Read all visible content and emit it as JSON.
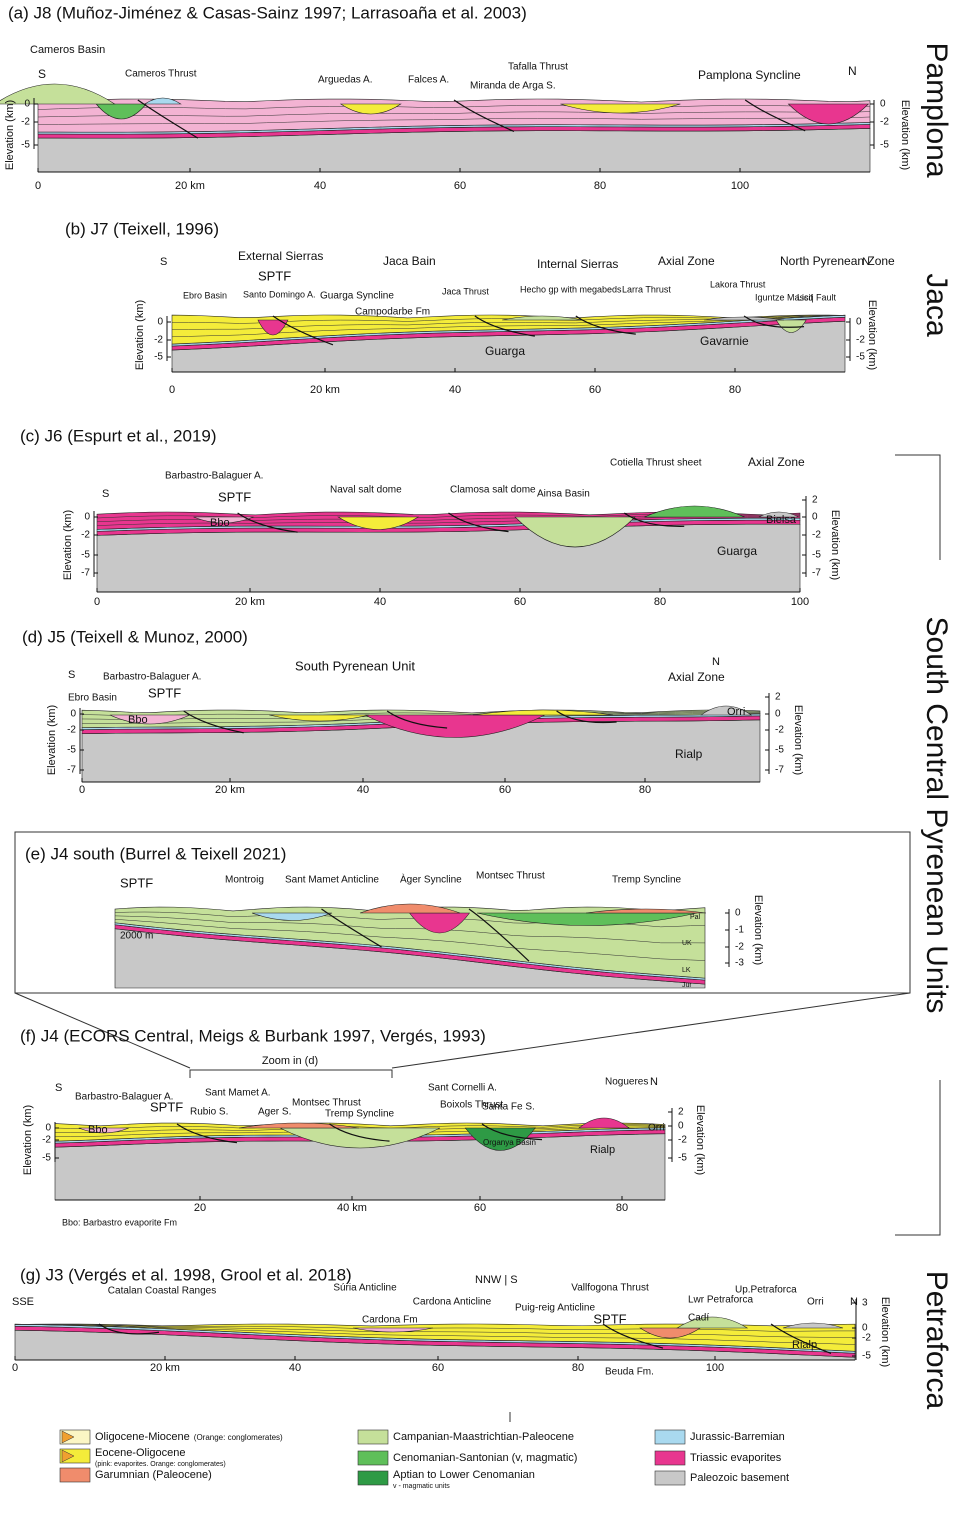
{
  "panels": [
    {
      "title": "(a) J8 (Muñoz-Jiménez & Casas-Sainz 1997; Larrasoaña et al. 2003)",
      "labels": [
        "Cameros Basin",
        "S",
        "Cameros Thrust",
        "Arguedas A.",
        "Falces A.",
        "Miranda de Arga S.",
        "Tafalla Thrust",
        "Pamplona Syncline",
        "N"
      ],
      "x_ticks": [
        "0",
        "20 km",
        "40",
        "60",
        "80",
        "100"
      ],
      "y_ticks_left": [
        "0",
        "-2",
        "-5"
      ],
      "y_ticks_right": [
        "0",
        "-2",
        "-5"
      ],
      "y_axis_label": "Elevation (km)"
    },
    {
      "title": "(b) J7 (Teixell, 1996)",
      "labels": [
        "S",
        "External Sierras",
        "SPTF",
        "Jaca Bain",
        "Internal Sierras",
        "Axial Zone",
        "North Pyrenean Zone",
        "N",
        "Ebro Basin",
        "Santo Domingo A.",
        "Guarga Syncline",
        "Campodarbe Fm",
        "Jaca Thrust",
        "Hecho gp with megabeds",
        "Larra Thrust",
        "Lakora Thrust",
        "Iguntze Massif",
        "Licq Fault",
        "Guarga",
        "Gavarnie"
      ],
      "x_ticks": [
        "0",
        "20 km",
        "40",
        "60",
        "80"
      ],
      "y_ticks_left": [
        "0",
        "-2",
        "-5"
      ],
      "y_ticks_right": [
        "0",
        "-2",
        "-5"
      ],
      "y_axis_label": "Elevation (km)"
    },
    {
      "title": "(c) J6 (Espurt et al., 2019)",
      "labels": [
        "Barbastro-Balaguer A.",
        "S",
        "SPTF",
        "Naval salt dome",
        "Clamosa salt dome",
        "Ainsa Basin",
        "Cotiella Thrust sheet",
        "Axial Zone",
        "Bbo",
        "Bielsa",
        "Guarga"
      ],
      "x_ticks": [
        "0",
        "20 km",
        "40",
        "60",
        "80",
        "100"
      ],
      "y_ticks_left": [
        "0",
        "-2",
        "-5",
        "-7"
      ],
      "y_ticks_right": [
        "2",
        "0",
        "-2",
        "-5",
        "-7"
      ],
      "y_axis_label": "Elevation (km)"
    },
    {
      "title": "(d) J5 (Teixell & Munoz, 2000)",
      "labels": [
        "S",
        "Barbastro-Balaguer A.",
        "South Pyrenean Unit",
        "N",
        "Axial Zone",
        "Ebro Basin",
        "SPTF",
        "Bbo",
        "Orri",
        "Rialp"
      ],
      "x_ticks": [
        "0",
        "20 km",
        "40",
        "60",
        "80"
      ],
      "y_ticks_left": [
        "0",
        "-2",
        "-5",
        "-7"
      ],
      "y_ticks_right": [
        "2",
        "0",
        "-2",
        "-5",
        "-7"
      ],
      "y_axis_label": "Elevation (km)"
    },
    {
      "title": "(e) J4 south (Burrel & Teixell 2021)",
      "labels": [
        "SPTF",
        "Montroig",
        "Sant Mamet Anticline",
        "Àger Syncline",
        "Montsec Thrust",
        "Tremp Syncline",
        "2000 m",
        "Pal",
        "UK",
        "LK",
        "Jur"
      ],
      "x_ticks": [],
      "y_ticks_left": [],
      "y_ticks_right": [
        "0",
        "-1",
        "-2",
        "-3"
      ],
      "y_axis_label": "Elevation (km)"
    },
    {
      "title": "(f) J4 (ECORS Central,  Meigs & Burbank 1997, Vergés, 1993)",
      "labels": [
        "Zoom in (d)",
        "S",
        "Barbastro-Balaguer A.",
        "SPTF",
        "Sant Mamet A.",
        "Rubio S.",
        "Ager S.",
        "Montsec Thrust",
        "Tremp Syncline",
        "Sant Cornelli A.",
        "Boixols Thrust",
        "Santa Fe S.",
        "Nogueres",
        "N",
        "Bbo",
        "Organya Basin",
        "Orri",
        "Rialp"
      ],
      "x_ticks": [
        "20",
        "40 km",
        "60",
        "80"
      ],
      "y_ticks_left": [
        "0",
        "-2",
        "-5"
      ],
      "y_ticks_right": [
        "2",
        "0",
        "-2",
        "-5"
      ],
      "y_axis_label": "Elevation (km)",
      "footnote": "Bbo: Barbastro evaporite Fm"
    },
    {
      "title": "(g) J3 (Vergés et al. 1998, Grool et al. 2018)",
      "labels": [
        "SSE",
        "Catalan Coastal Ranges",
        "Súria Anticline",
        "NNW | S",
        "Cardona Anticline",
        "Cardona Fm",
        "Puig-reig Anticline",
        "SPTF",
        "Vallfogona Thrust",
        "Lwr Petraforca",
        "Up.Petraforca",
        "Cadí",
        "Orri",
        "N",
        "Rialp",
        "Beuda Fm."
      ],
      "x_ticks": [
        "0",
        "20 km",
        "40",
        "60",
        "80",
        "100"
      ],
      "y_ticks_left": [],
      "y_ticks_right": [
        "3",
        "0",
        "-2",
        "-5"
      ],
      "y_axis_label": "Elevation (km)"
    }
  ],
  "side_labels": [
    "Pamplona",
    "Jaca",
    "South Central Pyrenean Units",
    "Petraforca"
  ],
  "legend": [
    {
      "name": "Oligocene-Miocene",
      "note": "(Orange: conglomerates)"
    },
    {
      "name": "Eocene-Oligocene",
      "note": "(pink: evaporites. Orange: conglomerates)"
    },
    {
      "name": "Garumnian (Paleocene)"
    },
    {
      "name": "Campanian-Maastrichtian-Paleocene"
    },
    {
      "name": "Cenomanian-Santonian (v, magmatic)"
    },
    {
      "name": "Aptian to Lower Cenomanian",
      "note": "v - magmatic units"
    },
    {
      "name": "Jurassic-Barremian"
    },
    {
      "name": "Triassic evaporites"
    },
    {
      "name": "Paleozoic basement"
    }
  ]
}
